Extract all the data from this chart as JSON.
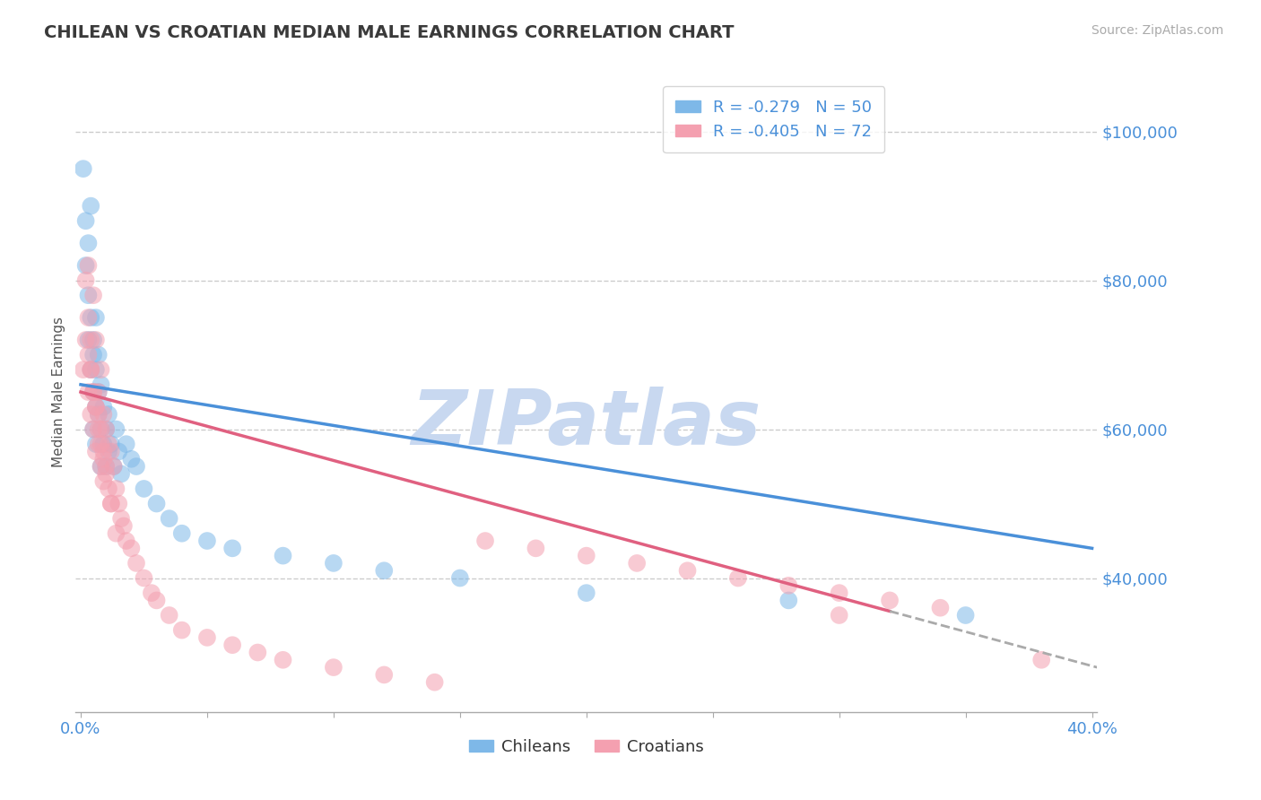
{
  "title": "CHILEAN VS CROATIAN MEDIAN MALE EARNINGS CORRELATION CHART",
  "source_text": "Source: ZipAtlas.com",
  "ylabel": "Median Male Earnings",
  "xlim": [
    -0.002,
    0.402
  ],
  "ylim": [
    22000,
    108000
  ],
  "yticks": [
    40000,
    60000,
    80000,
    100000
  ],
  "ytick_labels": [
    "$40,000",
    "$60,000",
    "$80,000",
    "$100,000"
  ],
  "title_color": "#3a3a3a",
  "title_fontsize": 14,
  "watermark_text": "ZIPatlas",
  "watermark_color": "#c8d8f0",
  "watermark_fontsize": 62,
  "legend_r1": "R = -0.279",
  "legend_n1": "N = 50",
  "legend_r2": "R = -0.405",
  "legend_n2": "N = 72",
  "chilean_color": "#7EB8E8",
  "croatian_color": "#F4A0B0",
  "trend_chilean_color": "#4A90D9",
  "trend_croatian_color": "#E06080",
  "trend_dash_color": "#aaaaaa",
  "axis_label_color": "#4A90D9",
  "grid_color": "#cccccc",
  "background_color": "#ffffff",
  "trend_chilean_x0": 0.0,
  "trend_chilean_y0": 66000,
  "trend_chilean_x1": 0.4,
  "trend_chilean_y1": 44000,
  "trend_croatian_x0": 0.0,
  "trend_croatian_y0": 65000,
  "trend_croatian_solid_x1": 0.32,
  "trend_croatian_dash_x1": 0.402,
  "trend_croatian_y1": 28000,
  "chilean_x": [
    0.001,
    0.002,
    0.002,
    0.003,
    0.003,
    0.003,
    0.004,
    0.004,
    0.004,
    0.005,
    0.005,
    0.005,
    0.005,
    0.006,
    0.006,
    0.006,
    0.006,
    0.007,
    0.007,
    0.007,
    0.008,
    0.008,
    0.008,
    0.009,
    0.009,
    0.01,
    0.01,
    0.011,
    0.011,
    0.012,
    0.013,
    0.014,
    0.015,
    0.016,
    0.018,
    0.02,
    0.022,
    0.025,
    0.03,
    0.035,
    0.04,
    0.05,
    0.06,
    0.08,
    0.1,
    0.12,
    0.15,
    0.2,
    0.28,
    0.35
  ],
  "chilean_y": [
    95000,
    88000,
    82000,
    78000,
    85000,
    72000,
    75000,
    68000,
    90000,
    70000,
    65000,
    72000,
    60000,
    68000,
    63000,
    58000,
    75000,
    65000,
    62000,
    70000,
    60000,
    66000,
    55000,
    63000,
    58000,
    60000,
    55000,
    62000,
    57000,
    58000,
    55000,
    60000,
    57000,
    54000,
    58000,
    56000,
    55000,
    52000,
    50000,
    48000,
    46000,
    45000,
    44000,
    43000,
    42000,
    41000,
    40000,
    38000,
    37000,
    35000
  ],
  "croatian_x": [
    0.001,
    0.002,
    0.002,
    0.003,
    0.003,
    0.003,
    0.004,
    0.004,
    0.004,
    0.005,
    0.005,
    0.005,
    0.006,
    0.006,
    0.006,
    0.007,
    0.007,
    0.007,
    0.008,
    0.008,
    0.008,
    0.009,
    0.009,
    0.009,
    0.01,
    0.01,
    0.011,
    0.011,
    0.012,
    0.012,
    0.013,
    0.014,
    0.015,
    0.016,
    0.017,
    0.018,
    0.02,
    0.022,
    0.025,
    0.028,
    0.03,
    0.035,
    0.04,
    0.05,
    0.06,
    0.07,
    0.08,
    0.1,
    0.12,
    0.14,
    0.16,
    0.18,
    0.2,
    0.22,
    0.24,
    0.26,
    0.28,
    0.3,
    0.32,
    0.34,
    0.003,
    0.004,
    0.005,
    0.006,
    0.007,
    0.008,
    0.009,
    0.01,
    0.012,
    0.014,
    0.3,
    0.38
  ],
  "croatian_y": [
    68000,
    80000,
    72000,
    75000,
    65000,
    70000,
    68000,
    72000,
    62000,
    65000,
    60000,
    78000,
    63000,
    57000,
    72000,
    62000,
    58000,
    65000,
    60000,
    55000,
    68000,
    62000,
    57000,
    53000,
    60000,
    55000,
    58000,
    52000,
    57000,
    50000,
    55000,
    52000,
    50000,
    48000,
    47000,
    45000,
    44000,
    42000,
    40000,
    38000,
    37000,
    35000,
    33000,
    32000,
    31000,
    30000,
    29000,
    28000,
    27000,
    26000,
    45000,
    44000,
    43000,
    42000,
    41000,
    40000,
    39000,
    38000,
    37000,
    36000,
    82000,
    68000,
    65000,
    63000,
    60000,
    58000,
    56000,
    54000,
    50000,
    46000,
    35000,
    29000
  ]
}
